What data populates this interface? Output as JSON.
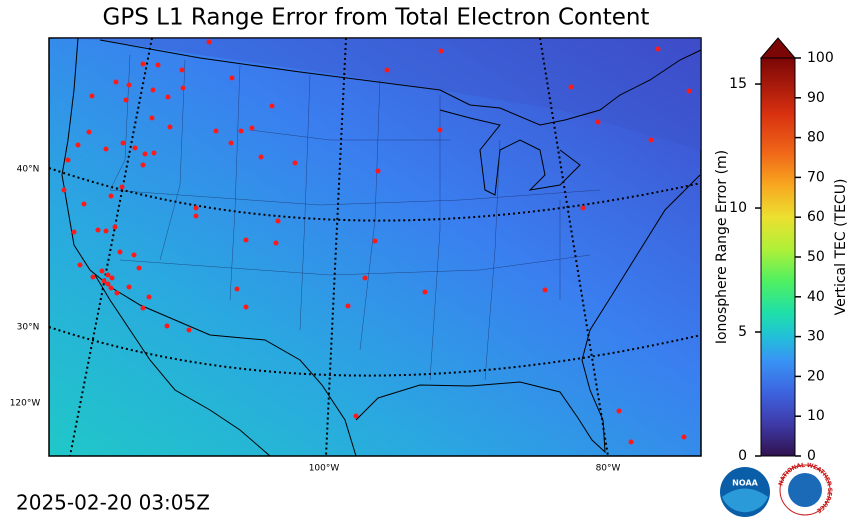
{
  "title": "GPS L1 Range Error from Total Electron Content",
  "map": {
    "lat_labels": [
      "40°N",
      "30°N"
    ],
    "lon_labels": [
      "120°W",
      "100°W",
      "80°W"
    ]
  },
  "colorbar": {
    "left_label": "Ionosphere Range Error (m)",
    "right_label": "Vertical TEC (TECU)",
    "left_lim": [
      0,
      16.05
    ],
    "left_ticks": [
      0,
      5,
      10,
      15
    ],
    "right_lim": [
      0,
      100
    ],
    "right_ticks": [
      0,
      10,
      20,
      30,
      40,
      50,
      60,
      70,
      80,
      90,
      100
    ]
  },
  "timestamp": "2025-02-20 03:05Z",
  "logos": {
    "noaa": "NOAA",
    "nws": "NATIONAL WEATHER SERVICE"
  }
}
